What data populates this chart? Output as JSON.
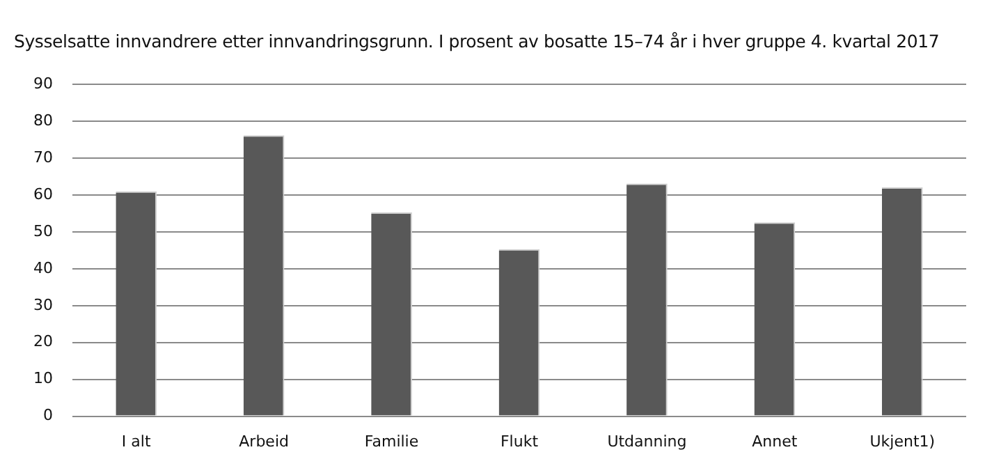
{
  "chart_data": {
    "type": "bar",
    "title": "Sysselsatte innvandrere etter innvandringsgrunn. I prosent av bosatte 15–74 år i hver gruppe 4. kvartal 2017",
    "categories": [
      "I alt",
      "Arbeid",
      "Familie",
      "Flukt",
      "Utdanning",
      "Annet",
      "Ukjent1)"
    ],
    "values": [
      61,
      76.2,
      55.3,
      45.3,
      63.1,
      52.6,
      62.1
    ],
    "color": "#585858",
    "ylim": [
      0,
      90
    ],
    "yticks": [
      0,
      10,
      20,
      30,
      40,
      50,
      60,
      70,
      80,
      90
    ],
    "grid": "y"
  }
}
